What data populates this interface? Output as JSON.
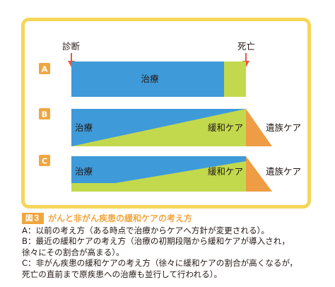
{
  "diagram": {
    "label_diagnosis": "診断",
    "label_death": "死亡",
    "rows": [
      {
        "letter": "A",
        "treatment_label": "治療",
        "palliative_label": "",
        "bereavement_label": ""
      },
      {
        "letter": "B",
        "treatment_label": "治療",
        "palliative_label": "緩和ケア",
        "bereavement_label": "遺族ケア"
      },
      {
        "letter": "C",
        "treatment_label": "治療",
        "palliative_label": "緩和ケア",
        "bereavement_label": "遺族ケア"
      }
    ],
    "colors": {
      "frame": "#f6d65a",
      "treatment": "#3e9ad9",
      "palliative": "#c3d94d",
      "bereavement": "#ee9d45",
      "letter_badge": "#f0a640",
      "arrow": "#e8563c"
    }
  },
  "caption": {
    "figure_tag": "図３",
    "title": "がんと非がん疾患の緩和ケアの考え方"
  },
  "notes": [
    "A：以前の考え方（ある時点で治療からケアへ方針が変更される）。",
    "B：最近の緩和ケアの考え方（治療の初期段階から緩和ケアが導入され，",
    "徐々にその割合が高まる）。",
    "C：非がん疾患の緩和ケアの考え方（徐々に緩和ケアの割合が高くなるが，",
    "死亡の直前まで原疾患への治療も並行して行われる）。"
  ]
}
